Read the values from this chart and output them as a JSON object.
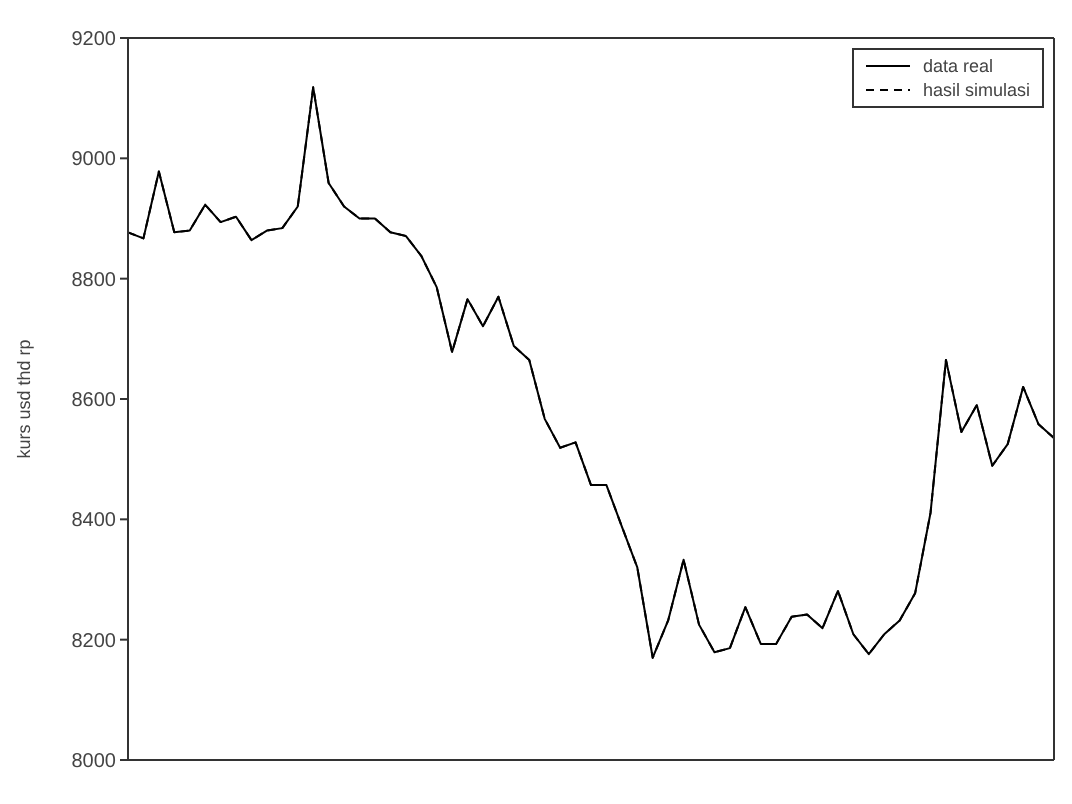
{
  "chart_data": {
    "type": "line",
    "ylabel": "kurs usd thd rp",
    "categories": [
      null,
      null,
      null,
      null,
      null,
      null,
      null,
      null,
      null,
      null,
      null,
      null,
      null,
      null,
      null,
      null,
      null,
      null,
      null,
      null,
      null,
      null,
      null,
      null,
      null,
      null,
      null,
      null,
      null,
      null,
      null,
      null,
      null,
      null,
      null,
      null,
      null,
      null,
      null,
      null,
      null,
      null,
      null,
      null,
      null,
      null,
      null,
      null,
      null,
      null,
      null,
      null,
      null,
      null,
      null,
      null,
      null,
      null,
      null,
      null,
      null
    ],
    "series": [
      {
        "name": "data real",
        "color": "#000000",
        "line_style": "solid",
        "values": [
          8877,
          8867,
          8978,
          8877,
          8880,
          8923,
          8894,
          8903,
          8864,
          8880,
          8884,
          8920,
          9118,
          8959,
          8920,
          8900,
          8900,
          8877,
          8871,
          8838,
          8786,
          8678,
          8766,
          8721,
          8770,
          8688,
          8665,
          8567,
          8519,
          8528,
          8457,
          8457,
          8388,
          8320,
          8170,
          8232,
          8333,
          8225,
          8179,
          8186,
          8254,
          8193,
          8193,
          8238,
          8242,
          8219,
          8281,
          8209,
          8176,
          8209,
          8232,
          8277,
          8411,
          8665,
          8545,
          8590,
          8489,
          8525,
          8620,
          8558,
          8535
        ]
      },
      {
        "name": "hasil simulasi",
        "color": "#000000",
        "line_style": "dashed",
        "values": [
          8877,
          8867,
          8978,
          8877,
          8880,
          8923,
          8894,
          8903,
          8864,
          8880,
          8884,
          8920,
          9118,
          8959,
          8920,
          8900,
          8900,
          8877,
          8871,
          8838,
          8786,
          8678,
          8766,
          8721,
          8770,
          8688,
          8665,
          8567,
          8519,
          8528,
          8457,
          8457,
          8388,
          8320,
          8170,
          8232,
          8333,
          8225,
          8179,
          8186,
          8254,
          8193,
          8193,
          8238,
          8242,
          8219,
          8281,
          8209,
          8176,
          8209,
          8232,
          8277,
          8411,
          8665,
          8545,
          8590,
          8489,
          8525,
          8620,
          8558,
          8535
        ]
      }
    ],
    "ylim": [
      8000,
      9200
    ],
    "yticks": [
      8000,
      8200,
      8400,
      8600,
      8800,
      9000,
      9200
    ],
    "tick_labels": "y",
    "legend": "top right",
    "marker": "none",
    "grid": false
  }
}
